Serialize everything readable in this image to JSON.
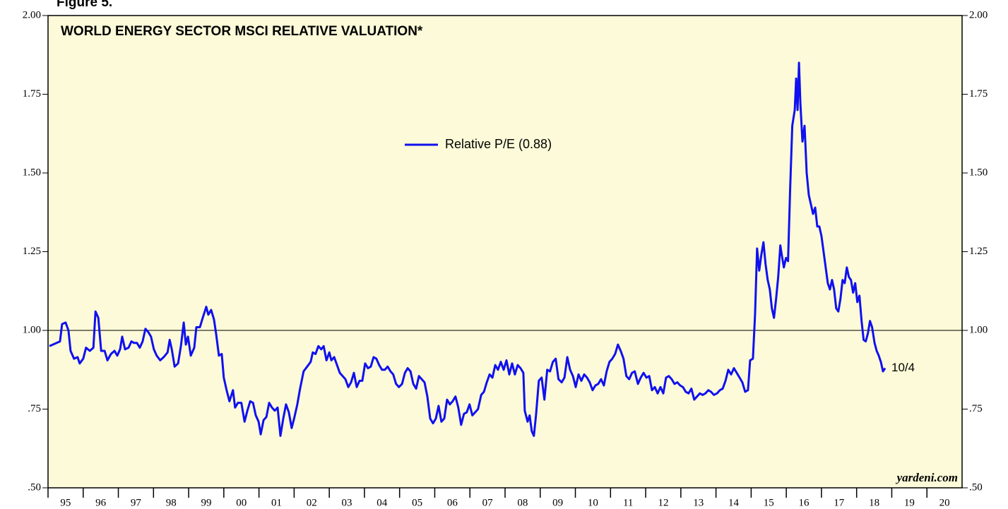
{
  "chart_data": {
    "type": "line",
    "figure_label": "Figure 5.",
    "title": "WORLD ENERGY SECTOR MSCI RELATIVE VALUATION*",
    "source": "yardeni.com",
    "end_annotation": "10/4",
    "reference_line": 1,
    "xlim": [
      1995,
      2021
    ],
    "xticks": [
      {
        "value": 1995,
        "label": "95"
      },
      {
        "value": 1996,
        "label": "96"
      },
      {
        "value": 1997,
        "label": "97"
      },
      {
        "value": 1998,
        "label": "98"
      },
      {
        "value": 1999,
        "label": "99"
      },
      {
        "value": 2000,
        "label": "00"
      },
      {
        "value": 2001,
        "label": "01"
      },
      {
        "value": 2002,
        "label": "02"
      },
      {
        "value": 2003,
        "label": "03"
      },
      {
        "value": 2004,
        "label": "04"
      },
      {
        "value": 2005,
        "label": "05"
      },
      {
        "value": 2006,
        "label": "06"
      },
      {
        "value": 2007,
        "label": "07"
      },
      {
        "value": 2008,
        "label": "08"
      },
      {
        "value": 2009,
        "label": "09"
      },
      {
        "value": 2010,
        "label": "10"
      },
      {
        "value": 2011,
        "label": "11"
      },
      {
        "value": 2012,
        "label": "12"
      },
      {
        "value": 2013,
        "label": "13"
      },
      {
        "value": 2014,
        "label": "14"
      },
      {
        "value": 2015,
        "label": "15"
      },
      {
        "value": 2016,
        "label": "16"
      },
      {
        "value": 2017,
        "label": "17"
      },
      {
        "value": 2018,
        "label": "18"
      },
      {
        "value": 2019,
        "label": "19"
      },
      {
        "value": 2020,
        "label": "20"
      }
    ],
    "ylim": [
      0.5,
      2
    ],
    "yticks": [
      {
        "value": 0.5,
        "label": ".50"
      },
      {
        "value": 0.75,
        "label": ".75"
      },
      {
        "value": 1,
        "label": "1.00"
      },
      {
        "value": 1.25,
        "label": "1.25"
      },
      {
        "value": 1.5,
        "label": "1.50"
      },
      {
        "value": 1.75,
        "label": "1.75"
      },
      {
        "value": 2,
        "label": "2.00"
      }
    ],
    "x": [
      1995.04,
      1995.34,
      1995.4,
      1995.5,
      1995.58,
      1995.64,
      1995.74,
      1995.84,
      1995.9,
      1996.0,
      1996.08,
      1996.19,
      1996.29,
      1996.35,
      1996.43,
      1996.51,
      1996.61,
      1996.69,
      1996.79,
      1996.89,
      1996.97,
      1997.05,
      1997.11,
      1997.19,
      1997.29,
      1997.37,
      1997.45,
      1997.53,
      1997.61,
      1997.69,
      1997.77,
      1997.85,
      1997.93,
      1998.01,
      1998.09,
      1998.19,
      1998.29,
      1998.4,
      1998.46,
      1998.52,
      1998.6,
      1998.7,
      1998.78,
      1998.86,
      1998.92,
      1998.98,
      1999.06,
      1999.16,
      1999.22,
      1999.32,
      1999.4,
      1999.5,
      1999.56,
      1999.64,
      1999.72,
      1999.78,
      1999.86,
      1999.94,
      2000.0,
      2000.08,
      2000.16,
      2000.26,
      2000.32,
      2000.4,
      2000.5,
      2000.59,
      2000.67,
      2000.75,
      2000.83,
      2000.91,
      2000.99,
      2001.05,
      2001.13,
      2001.21,
      2001.29,
      2001.37,
      2001.45,
      2001.53,
      2001.61,
      2001.69,
      2001.77,
      2001.85,
      2001.93,
      2002.01,
      2002.09,
      2002.17,
      2002.27,
      2002.37,
      2002.47,
      2002.53,
      2002.61,
      2002.69,
      2002.77,
      2002.84,
      2002.92,
      2003.0,
      2003.06,
      2003.14,
      2003.22,
      2003.3,
      2003.38,
      2003.46,
      2003.54,
      2003.62,
      2003.7,
      2003.78,
      2003.86,
      2003.94,
      2004.02,
      2004.1,
      2004.18,
      2004.26,
      2004.34,
      2004.42,
      2004.5,
      2004.58,
      2004.66,
      2004.74,
      2004.82,
      2004.9,
      2004.98,
      2005.07,
      2005.15,
      2005.23,
      2005.31,
      2005.39,
      2005.47,
      2005.55,
      2005.63,
      2005.71,
      2005.79,
      2005.87,
      2005.95,
      2006.03,
      2006.11,
      2006.19,
      2006.27,
      2006.35,
      2006.43,
      2006.51,
      2006.59,
      2006.67,
      2006.75,
      2006.83,
      2006.91,
      2006.99,
      2007.07,
      2007.15,
      2007.23,
      2007.32,
      2007.4,
      2007.48,
      2007.56,
      2007.64,
      2007.72,
      2007.8,
      2007.88,
      2007.96,
      2008.04,
      2008.12,
      2008.2,
      2008.28,
      2008.36,
      2008.44,
      2008.52,
      2008.56,
      2008.64,
      2008.7,
      2008.76,
      2008.82,
      2008.88,
      2008.96,
      2009.04,
      2009.12,
      2009.2,
      2009.28,
      2009.36,
      2009.44,
      2009.52,
      2009.61,
      2009.69,
      2009.77,
      2009.85,
      2009.93,
      2010.01,
      2010.09,
      2010.17,
      2010.25,
      2010.33,
      2010.41,
      2010.49,
      2010.57,
      2010.65,
      2010.73,
      2010.81,
      2010.89,
      2010.97,
      2011.05,
      2011.13,
      2011.21,
      2011.29,
      2011.37,
      2011.45,
      2011.53,
      2011.61,
      2011.69,
      2011.78,
      2011.86,
      2011.94,
      2012.02,
      2012.1,
      2012.18,
      2012.26,
      2012.34,
      2012.42,
      2012.5,
      2012.58,
      2012.66,
      2012.74,
      2012.82,
      2012.9,
      2012.98,
      2013.06,
      2013.14,
      2013.22,
      2013.3,
      2013.38,
      2013.46,
      2013.54,
      2013.62,
      2013.7,
      2013.78,
      2013.86,
      2013.94,
      2014.03,
      2014.11,
      2014.19,
      2014.27,
      2014.35,
      2014.43,
      2014.51,
      2014.59,
      2014.67,
      2014.75,
      2014.83,
      2014.91,
      2014.97,
      2015.05,
      2015.11,
      2015.17,
      2015.23,
      2015.29,
      2015.35,
      2015.41,
      2015.47,
      2015.53,
      2015.59,
      2015.65,
      2015.71,
      2015.77,
      2015.83,
      2015.87,
      2015.93,
      2015.99,
      2016.05,
      2016.11,
      2016.17,
      2016.24,
      2016.28,
      2016.32,
      2016.36,
      2016.4,
      2016.46,
      2016.52,
      2016.58,
      2016.64,
      2016.7,
      2016.76,
      2016.82,
      2016.88,
      2016.94,
      2017.0,
      2017.06,
      2017.12,
      2017.18,
      2017.24,
      2017.3,
      2017.36,
      2017.42,
      2017.48,
      2017.54,
      2017.6,
      2017.66,
      2017.72,
      2017.78,
      2017.84,
      2017.9,
      2017.96,
      2018.02,
      2018.08,
      2018.14,
      2018.2,
      2018.26,
      2018.32,
      2018.38,
      2018.44,
      2018.51,
      2018.57,
      2018.63,
      2018.69,
      2018.75,
      2018.81
    ],
    "series": [
      {
        "name": "Relative P/E (0.88)",
        "color": "#1010f0",
        "values": [
          0.95,
          0.965,
          1.02,
          1.025,
          1.0,
          0.935,
          0.91,
          0.915,
          0.895,
          0.91,
          0.945,
          0.935,
          0.945,
          1.06,
          1.04,
          0.935,
          0.935,
          0.905,
          0.925,
          0.935,
          0.92,
          0.94,
          0.98,
          0.94,
          0.945,
          0.965,
          0.96,
          0.96,
          0.945,
          0.965,
          1.005,
          0.995,
          0.98,
          0.94,
          0.92,
          0.905,
          0.915,
          0.93,
          0.97,
          0.94,
          0.885,
          0.895,
          0.95,
          1.025,
          0.955,
          0.98,
          0.92,
          0.945,
          1.01,
          1.01,
          1.04,
          1.075,
          1.05,
          1.065,
          1.035,
          0.99,
          0.92,
          0.925,
          0.85,
          0.81,
          0.775,
          0.81,
          0.755,
          0.77,
          0.77,
          0.71,
          0.745,
          0.775,
          0.77,
          0.73,
          0.71,
          0.67,
          0.715,
          0.725,
          0.77,
          0.755,
          0.745,
          0.755,
          0.665,
          0.72,
          0.765,
          0.74,
          0.69,
          0.725,
          0.765,
          0.815,
          0.87,
          0.885,
          0.9,
          0.93,
          0.925,
          0.95,
          0.94,
          0.95,
          0.905,
          0.93,
          0.905,
          0.915,
          0.89,
          0.865,
          0.855,
          0.845,
          0.82,
          0.835,
          0.865,
          0.82,
          0.84,
          0.84,
          0.895,
          0.88,
          0.885,
          0.915,
          0.91,
          0.89,
          0.875,
          0.875,
          0.885,
          0.87,
          0.86,
          0.83,
          0.82,
          0.83,
          0.865,
          0.88,
          0.87,
          0.83,
          0.815,
          0.855,
          0.845,
          0.835,
          0.79,
          0.72,
          0.705,
          0.72,
          0.76,
          0.71,
          0.72,
          0.78,
          0.765,
          0.775,
          0.79,
          0.755,
          0.7,
          0.735,
          0.74,
          0.765,
          0.73,
          0.74,
          0.75,
          0.795,
          0.805,
          0.835,
          0.86,
          0.85,
          0.89,
          0.875,
          0.9,
          0.875,
          0.905,
          0.86,
          0.895,
          0.86,
          0.89,
          0.88,
          0.865,
          0.745,
          0.71,
          0.73,
          0.68,
          0.665,
          0.73,
          0.84,
          0.85,
          0.78,
          0.875,
          0.87,
          0.9,
          0.91,
          0.845,
          0.835,
          0.85,
          0.915,
          0.875,
          0.855,
          0.82,
          0.86,
          0.84,
          0.86,
          0.85,
          0.835,
          0.81,
          0.825,
          0.83,
          0.845,
          0.825,
          0.87,
          0.9,
          0.91,
          0.925,
          0.955,
          0.935,
          0.91,
          0.855,
          0.845,
          0.865,
          0.87,
          0.83,
          0.85,
          0.865,
          0.85,
          0.855,
          0.81,
          0.82,
          0.8,
          0.82,
          0.8,
          0.85,
          0.855,
          0.845,
          0.83,
          0.835,
          0.825,
          0.82,
          0.805,
          0.8,
          0.815,
          0.78,
          0.79,
          0.8,
          0.795,
          0.8,
          0.81,
          0.805,
          0.795,
          0.8,
          0.81,
          0.815,
          0.84,
          0.875,
          0.86,
          0.88,
          0.865,
          0.85,
          0.835,
          0.805,
          0.81,
          0.905,
          0.91,
          1.05,
          1.26,
          1.19,
          1.24,
          1.28,
          1.21,
          1.16,
          1.13,
          1.07,
          1.04,
          1.1,
          1.17,
          1.27,
          1.24,
          1.2,
          1.23,
          1.22,
          1.45,
          1.65,
          1.7,
          1.8,
          1.7,
          1.85,
          1.72,
          1.6,
          1.65,
          1.5,
          1.43,
          1.4,
          1.37,
          1.39,
          1.33,
          1.33,
          1.3,
          1.25,
          1.2,
          1.15,
          1.13,
          1.16,
          1.13,
          1.07,
          1.06,
          1.1,
          1.16,
          1.15,
          1.2,
          1.17,
          1.16,
          1.12,
          1.15,
          1.09,
          1.11,
          1.03,
          0.97,
          0.965,
          0.99,
          1.03,
          1.01,
          0.96,
          0.935,
          0.92,
          0.9,
          0.87,
          0.88
        ]
      }
    ],
    "plot_background": "#fcfad8"
  }
}
